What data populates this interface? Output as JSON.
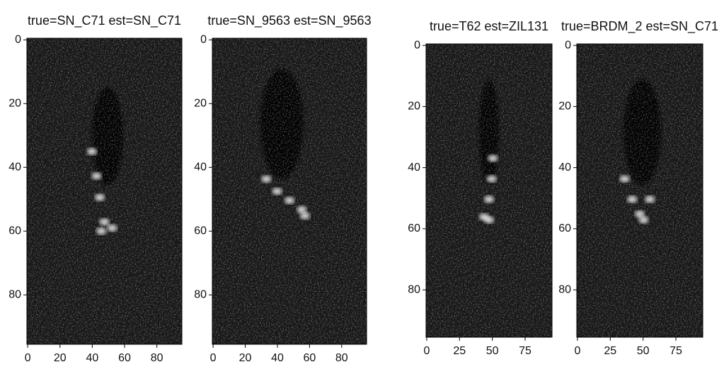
{
  "chart_data": [
    {
      "type": "image",
      "title": "true=SN_C71 est=SN_C71",
      "xlim": [
        -0.5,
        95.5
      ],
      "ylim": [
        95.5,
        -0.5
      ],
      "xticks": [
        0,
        20,
        40,
        60,
        80
      ],
      "yticks": [
        0,
        20,
        40,
        60,
        80
      ]
    },
    {
      "type": "image",
      "title": "true=SN_9563 est=SN_9563",
      "xlim": [
        -0.5,
        95.5
      ],
      "ylim": [
        95.5,
        -0.5
      ],
      "xticks": [
        0,
        20,
        40,
        60,
        80
      ],
      "yticks": [
        0,
        20,
        40,
        60,
        80
      ]
    },
    {
      "type": "image",
      "title": "true=T62 est=ZIL131",
      "xlim": [
        -0.5,
        95.5
      ],
      "ylim": [
        95.5,
        -0.5
      ],
      "xticks": [
        0,
        25,
        50,
        75
      ],
      "yticks": [
        0,
        20,
        40,
        60,
        80
      ]
    },
    {
      "type": "image",
      "title": "true=BRDM_2 est=SN_C71",
      "xlim": [
        -0.5,
        95.5
      ],
      "ylim": [
        95.5,
        -0.5
      ],
      "xticks": [
        0,
        25,
        50,
        75
      ],
      "yticks": [
        0,
        20,
        40,
        60,
        80
      ]
    }
  ]
}
